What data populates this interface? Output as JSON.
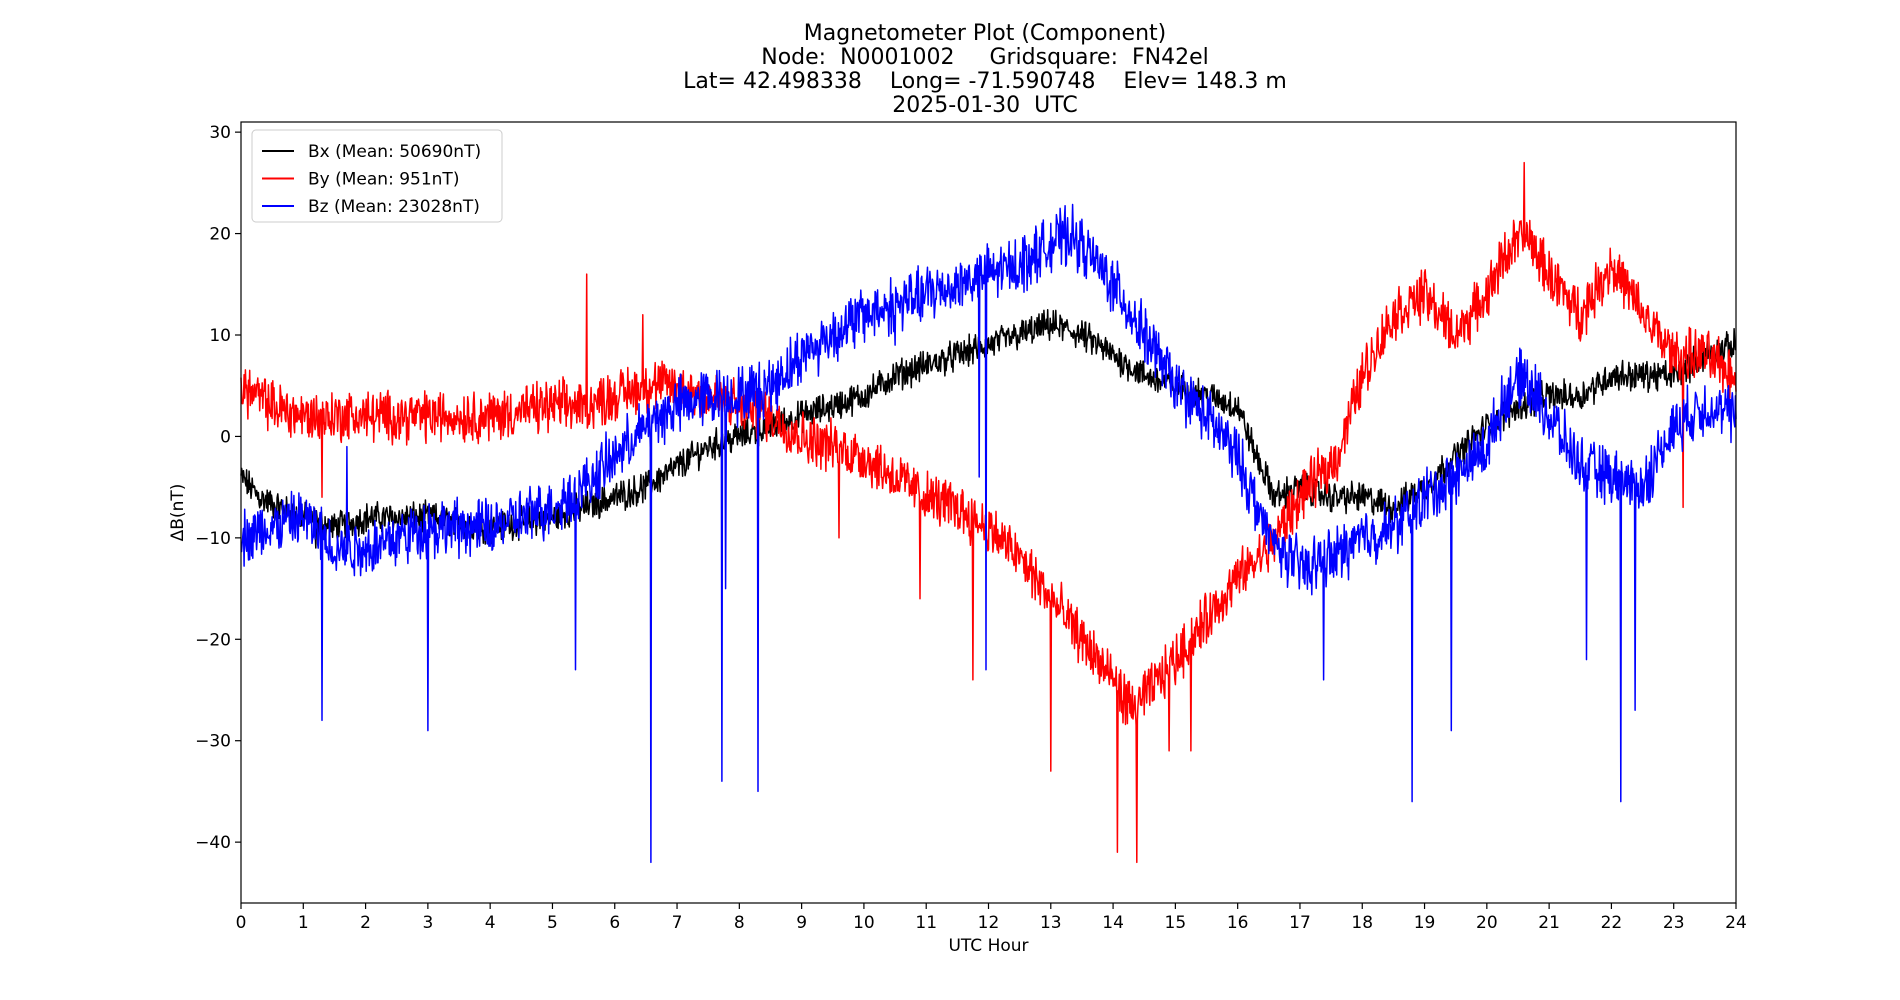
{
  "chart_data": {
    "type": "line",
    "title_lines": [
      "Magnetometer Plot (Component)",
      "Node:  N0001002     Gridsquare:  FN42el",
      "Lat= 42.498338    Long= -71.590748    Elev= 148.3 m",
      "2025-01-30  UTC"
    ],
    "xlabel": "UTC Hour",
    "ylabel": "ΔB(nT)",
    "xlim": [
      0,
      24
    ],
    "ylim": [
      -46,
      31
    ],
    "xticks": [
      0,
      1,
      2,
      3,
      4,
      5,
      6,
      7,
      8,
      9,
      10,
      11,
      12,
      13,
      14,
      15,
      16,
      17,
      18,
      19,
      20,
      21,
      22,
      23,
      24
    ],
    "xtick_labels": [
      "0",
      "1",
      "2",
      "3",
      "4",
      "5",
      "6",
      "7",
      "8",
      "9",
      "10",
      "11",
      "12",
      "13",
      "14",
      "15",
      "16",
      "17",
      "18",
      "19",
      "20",
      "21",
      "22",
      "23",
      "24"
    ],
    "yticks": [
      -40,
      -30,
      -20,
      -10,
      0,
      10,
      20,
      30
    ],
    "ytick_labels": [
      "−40",
      "−30",
      "−20",
      "−10",
      "0",
      "10",
      "20",
      "30"
    ],
    "grid": false,
    "legend_position": "top-left",
    "series": [
      {
        "name": "Bx (Mean: 50690nT)",
        "color": "#000000",
        "noise": 1.2,
        "x": [
          0,
          0.3,
          0.6,
          1,
          1.5,
          2,
          3,
          4,
          5,
          5.5,
          6,
          6.5,
          7,
          7.5,
          8,
          8.5,
          9,
          9.5,
          10,
          10.5,
          11,
          11.5,
          12,
          12.5,
          13,
          13.5,
          14,
          14.5,
          15,
          15.5,
          16,
          16.3,
          16.6,
          17,
          17.5,
          18,
          18.5,
          19,
          19.5,
          20,
          20.5,
          21,
          21.5,
          22,
          22.5,
          23,
          23.5,
          24
        ],
        "y": [
          -4,
          -6,
          -7,
          -8,
          -9,
          -8,
          -8,
          -9,
          -8,
          -7,
          -6,
          -5,
          -3,
          -1,
          0,
          1,
          2,
          3,
          4,
          6,
          7,
          8,
          9,
          10,
          11,
          10,
          8,
          6,
          5,
          4,
          3,
          -2,
          -6,
          -5,
          -6,
          -6,
          -7,
          -5,
          -2,
          1,
          3,
          4,
          4,
          6,
          6,
          6,
          8,
          9
        ]
      },
      {
        "name": "By (Mean: 951nT)",
        "color": "#ff0000",
        "noise": 2.0,
        "x": [
          0,
          0.5,
          1,
          1.5,
          2,
          3,
          4,
          5,
          5.5,
          6,
          6.5,
          7,
          7.5,
          8,
          8.5,
          9,
          9.5,
          10,
          10.5,
          11,
          11.5,
          12,
          12.5,
          13,
          13.5,
          14,
          14.3,
          14.6,
          15,
          15.5,
          16,
          16.5,
          17,
          17.3,
          17.6,
          18,
          18.5,
          19,
          19.5,
          20,
          20.3,
          20.6,
          21,
          21.5,
          22,
          22.5,
          23,
          23.5,
          24
        ],
        "y": [
          5,
          3,
          2,
          2,
          2,
          2,
          2,
          3,
          3,
          4,
          5,
          5,
          4,
          3,
          2,
          0,
          -1,
          -2,
          -4,
          -6,
          -7,
          -9,
          -12,
          -16,
          -20,
          -24,
          -27,
          -25,
          -22,
          -18,
          -14,
          -11,
          -6,
          -4,
          -2,
          6,
          12,
          14,
          10,
          14,
          18,
          20,
          16,
          12,
          17,
          12,
          8,
          8,
          6
        ]
      },
      {
        "name": "Bz (Mean: 23028nT)",
        "color": "#0000ff",
        "noise": 2.2,
        "x": [
          0,
          0.5,
          1,
          1.5,
          2,
          2.5,
          3,
          3.5,
          4,
          4.5,
          5,
          5.5,
          6,
          6.5,
          7,
          7.5,
          8,
          8.5,
          9,
          9.5,
          10,
          10.5,
          11,
          11.5,
          12,
          12.5,
          13,
          13.3,
          13.6,
          14,
          14.5,
          15,
          15.5,
          16,
          16.5,
          17,
          17.5,
          18,
          18.5,
          19,
          19.5,
          20,
          20.3,
          20.6,
          21,
          21.5,
          22,
          22.5,
          23,
          23.5,
          24
        ],
        "y": [
          -10,
          -9,
          -8,
          -11,
          -11,
          -10,
          -9,
          -9,
          -9,
          -8,
          -7,
          -5,
          -2,
          1,
          3,
          4,
          4,
          5,
          8,
          10,
          12,
          13,
          14,
          15,
          16,
          17,
          19,
          20,
          18,
          15,
          10,
          5,
          2,
          -2,
          -10,
          -13,
          -12,
          -10,
          -9,
          -6,
          -4,
          -1,
          4,
          6,
          2,
          -3,
          -4,
          -5,
          1,
          3,
          2
        ]
      }
    ],
    "spikes": [
      {
        "series": 2,
        "x": 1.3,
        "y": -28
      },
      {
        "series": 2,
        "x": 1.7,
        "y": -1
      },
      {
        "series": 2,
        "x": 3.0,
        "y": -29
      },
      {
        "series": 2,
        "x": 5.37,
        "y": -23
      },
      {
        "series": 2,
        "x": 6.58,
        "y": -42
      },
      {
        "series": 2,
        "x": 7.72,
        "y": -34
      },
      {
        "series": 2,
        "x": 7.78,
        "y": -15
      },
      {
        "series": 2,
        "x": 8.3,
        "y": -35
      },
      {
        "series": 2,
        "x": 10.5,
        "y": 9
      },
      {
        "series": 2,
        "x": 11.85,
        "y": -4
      },
      {
        "series": 2,
        "x": 11.96,
        "y": -23
      },
      {
        "series": 2,
        "x": 17.38,
        "y": -24
      },
      {
        "series": 2,
        "x": 18.8,
        "y": -36
      },
      {
        "series": 2,
        "x": 19.43,
        "y": -29
      },
      {
        "series": 2,
        "x": 21.6,
        "y": -22
      },
      {
        "series": 2,
        "x": 22.15,
        "y": -36
      },
      {
        "series": 2,
        "x": 22.38,
        "y": -27
      },
      {
        "series": 1,
        "x": 5.55,
        "y": 16
      },
      {
        "series": 1,
        "x": 6.45,
        "y": 12
      },
      {
        "series": 1,
        "x": 1.3,
        "y": -6
      },
      {
        "series": 1,
        "x": 9.6,
        "y": -10
      },
      {
        "series": 1,
        "x": 10.9,
        "y": -16
      },
      {
        "series": 1,
        "x": 11.75,
        "y": -24
      },
      {
        "series": 1,
        "x": 13.0,
        "y": -33
      },
      {
        "series": 1,
        "x": 14.07,
        "y": -41
      },
      {
        "series": 1,
        "x": 14.38,
        "y": -42
      },
      {
        "series": 1,
        "x": 14.9,
        "y": -31
      },
      {
        "series": 1,
        "x": 15.25,
        "y": -31
      },
      {
        "series": 1,
        "x": 20.6,
        "y": 27
      },
      {
        "series": 1,
        "x": 23.15,
        "y": -7
      },
      {
        "series": 0,
        "x": 1.2,
        "y": -11
      }
    ]
  }
}
